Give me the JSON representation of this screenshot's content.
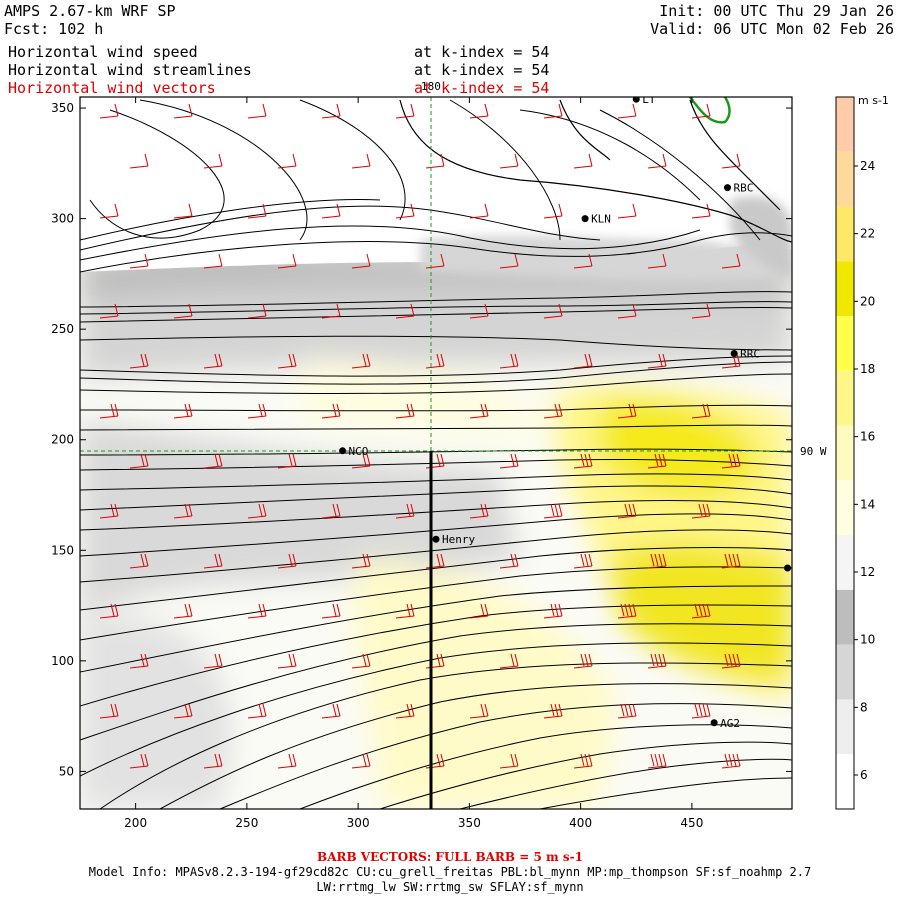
{
  "header": {
    "model": "AMPS 2.67-km WRF SP",
    "forecast": "Fcst: 102 h",
    "init": "Init: 00 UTC Thu 29 Jan 26",
    "valid": "Valid: 06 UTC Mon 02 Feb 26",
    "fields": [
      {
        "name": "Horizontal wind speed",
        "level": "at k-index = 54",
        "color": "#000000"
      },
      {
        "name": "Horizontal wind streamlines",
        "level": "at k-index = 54",
        "color": "#000000"
      },
      {
        "name": "Horizontal wind vectors",
        "level": "at k-index = 54",
        "color": "#e00000"
      }
    ]
  },
  "map": {
    "x_ticks": [
      "200",
      "250",
      "300",
      "350",
      "400",
      "450"
    ],
    "y_ticks": [
      "50",
      "100",
      "150",
      "200",
      "250",
      "300",
      "350"
    ],
    "x_range": [
      175,
      495
    ],
    "y_range": [
      33,
      355
    ],
    "meridian_label": "180",
    "parallel_label": "90 W",
    "stations": [
      {
        "name": "LT",
        "x": 425,
        "y": 354
      },
      {
        "name": "RBC",
        "x": 466,
        "y": 314
      },
      {
        "name": "KLN",
        "x": 402,
        "y": 300
      },
      {
        "name": "RRC",
        "x": 469,
        "y": 239
      },
      {
        "name": "NCO",
        "x": 293,
        "y": 195
      },
      {
        "name": "Henry",
        "x": 335,
        "y": 155
      },
      {
        "name": "AG2",
        "x": 460,
        "y": 72
      },
      {
        "name": "",
        "x": 493,
        "y": 142
      }
    ]
  },
  "colorbar": {
    "unit": "m s-1",
    "ticks": [
      "6",
      "8",
      "10",
      "12",
      "14",
      "16",
      "18",
      "20",
      "22",
      "24"
    ],
    "colors": [
      "#ffffff",
      "#eeeeee",
      "#d6d6d6",
      "#bdbdbd",
      "#f5f5f5",
      "#ffffe0",
      "#fffbc0",
      "#fff68a",
      "#ffff4c",
      "#f0e800",
      "#ffe866",
      "#ffd99b",
      "#ffcba8"
    ]
  },
  "footer": {
    "barb_note": "BARB VECTORS: FULL BARB = 5 m s-1",
    "model_info": "Model Info: MPASv8.2.3-194-gf29cd82c CU:cu_grell_freitas PBL:bl_mynn MP:mp_thompson SF:sf_noahmp 2.7",
    "model_info2": "LW:rrtmg_lw SW:rrtmg_sw SFLAY:sf_mynn"
  }
}
